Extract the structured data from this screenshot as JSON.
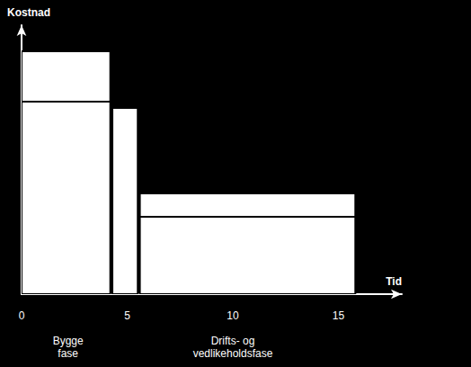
{
  "chart_data": {
    "type": "bar",
    "x_label": "Tid",
    "y_label": "Kostnad",
    "x_start": [
      0,
      4.3,
      5.6
    ],
    "x_end": [
      4.2,
      5.5,
      15.8
    ],
    "series": [
      {
        "color": "#ffffff",
        "values": [
          71.6,
          69.2,
          28.8
        ]
      },
      {
        "color": "#ffffff",
        "values": [
          18.7,
          null,
          8.7
        ]
      }
    ],
    "stacked": true,
    "xlim": [
      0,
      18
    ],
    "xticks": [
      0,
      5,
      10,
      15
    ],
    "ylim": [
      0,
      100
    ],
    "tick_labels": "x",
    "grid": false,
    "annotations": [
      {
        "text": "Bygge fase",
        "x": 2.2
      },
      {
        "text": "Drifts- og vedlikeholdsfase",
        "x": 10
      }
    ]
  }
}
